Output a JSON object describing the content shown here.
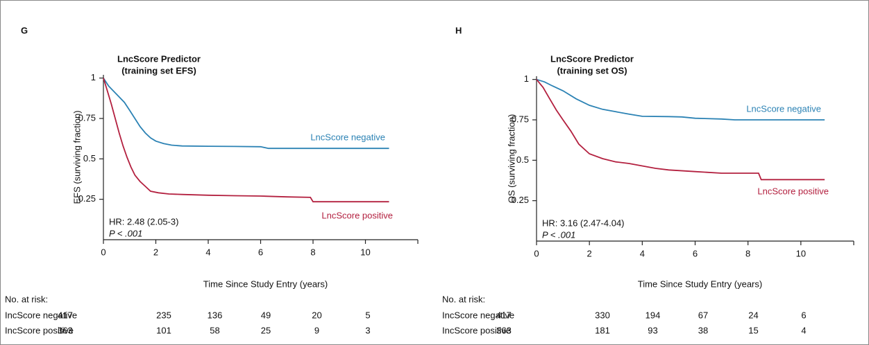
{
  "chart_data": [
    {
      "type": "line",
      "panel": "G",
      "title": [
        "LncScore Predictor",
        "(training set EFS)"
      ],
      "ylabel": "EFS (surviving fraction)",
      "xlabel": "Time Since Study Entry (years)",
      "xlim": [
        0,
        12
      ],
      "xticks": [
        0,
        2,
        4,
        6,
        8,
        10
      ],
      "ylim": [
        0,
        1.02
      ],
      "yticks": [
        0.25,
        0.5,
        0.75,
        1
      ],
      "series": [
        {
          "name": "LncScore negative",
          "color": "#2b82b4",
          "x": [
            0,
            0.2,
            0.5,
            0.8,
            1.0,
            1.2,
            1.4,
            1.6,
            1.8,
            2.0,
            2.3,
            2.6,
            3.0,
            4.0,
            5.0,
            6.0,
            6.3,
            7.0,
            8.0,
            9.0,
            10.0,
            10.9
          ],
          "values": [
            1,
            0.95,
            0.9,
            0.85,
            0.8,
            0.75,
            0.7,
            0.66,
            0.63,
            0.61,
            0.595,
            0.585,
            0.58,
            0.578,
            0.577,
            0.575,
            0.565,
            0.565,
            0.565,
            0.565,
            0.565,
            0.565
          ]
        },
        {
          "name": "LncScore positive",
          "color": "#b3203f",
          "x": [
            0,
            0.15,
            0.3,
            0.45,
            0.6,
            0.75,
            0.9,
            1.05,
            1.2,
            1.4,
            1.6,
            1.8,
            2.1,
            2.5,
            3.0,
            4.0,
            5.0,
            6.0,
            7.0,
            7.9,
            8.0,
            9.0,
            10.0,
            10.9
          ],
          "values": [
            1,
            0.92,
            0.84,
            0.75,
            0.66,
            0.58,
            0.51,
            0.45,
            0.4,
            0.36,
            0.33,
            0.3,
            0.29,
            0.283,
            0.28,
            0.275,
            0.272,
            0.27,
            0.265,
            0.262,
            0.235,
            0.235,
            0.235,
            0.235
          ]
        }
      ],
      "annotations": [
        "HR: 2.48 (2.05-3)",
        "P < .001"
      ],
      "risk_table": {
        "title": "No. at risk:",
        "rows": [
          {
            "label": "IncScore negative",
            "counts": [
              417,
              235,
              136,
              49,
              20,
              5
            ]
          },
          {
            "label": "IncScore positive",
            "counts": [
              363,
              101,
              58,
              25,
              9,
              3
            ]
          }
        ]
      }
    },
    {
      "type": "line",
      "panel": "H",
      "title": [
        "LncScore Predictor",
        "(training set OS)"
      ],
      "ylabel": "OS (surviving fraction)",
      "xlabel": "Time Since Study Entry (years)",
      "xlim": [
        0,
        12
      ],
      "xticks": [
        0,
        2,
        4,
        6,
        8,
        10
      ],
      "ylim": [
        0,
        1.02
      ],
      "yticks": [
        0.25,
        0.5,
        0.75,
        1
      ],
      "series": [
        {
          "name": "LncScore negative",
          "color": "#2b82b4",
          "x": [
            0,
            0.3,
            0.6,
            1.0,
            1.5,
            2.0,
            2.5,
            3.0,
            3.5,
            4.0,
            5.0,
            5.5,
            6.0,
            7.0,
            7.5,
            8.0,
            9.0,
            10.0,
            10.9
          ],
          "values": [
            1,
            0.985,
            0.96,
            0.93,
            0.88,
            0.84,
            0.815,
            0.8,
            0.785,
            0.772,
            0.77,
            0.768,
            0.76,
            0.755,
            0.75,
            0.75,
            0.75,
            0.75,
            0.75
          ]
        },
        {
          "name": "LncScore positive",
          "color": "#b3203f",
          "x": [
            0,
            0.25,
            0.5,
            0.75,
            1.0,
            1.3,
            1.6,
            2.0,
            2.5,
            3.0,
            3.5,
            4.0,
            4.5,
            5.0,
            6.0,
            7.0,
            8.4,
            8.5,
            9.0,
            10.0,
            10.9
          ],
          "values": [
            1,
            0.95,
            0.88,
            0.81,
            0.75,
            0.68,
            0.6,
            0.54,
            0.51,
            0.49,
            0.48,
            0.465,
            0.45,
            0.44,
            0.43,
            0.42,
            0.42,
            0.38,
            0.38,
            0.38,
            0.38
          ]
        }
      ],
      "annotations": [
        "HR: 3.16 (2.47-4.04)",
        "P < .001"
      ],
      "risk_table": {
        "title": "No. at risk:",
        "rows": [
          {
            "label": "IncScore negative",
            "counts": [
              417,
              330,
              194,
              67,
              24,
              6
            ]
          },
          {
            "label": "IncScore positive",
            "counts": [
              363,
              181,
              93,
              38,
              15,
              4
            ]
          }
        ]
      }
    }
  ]
}
